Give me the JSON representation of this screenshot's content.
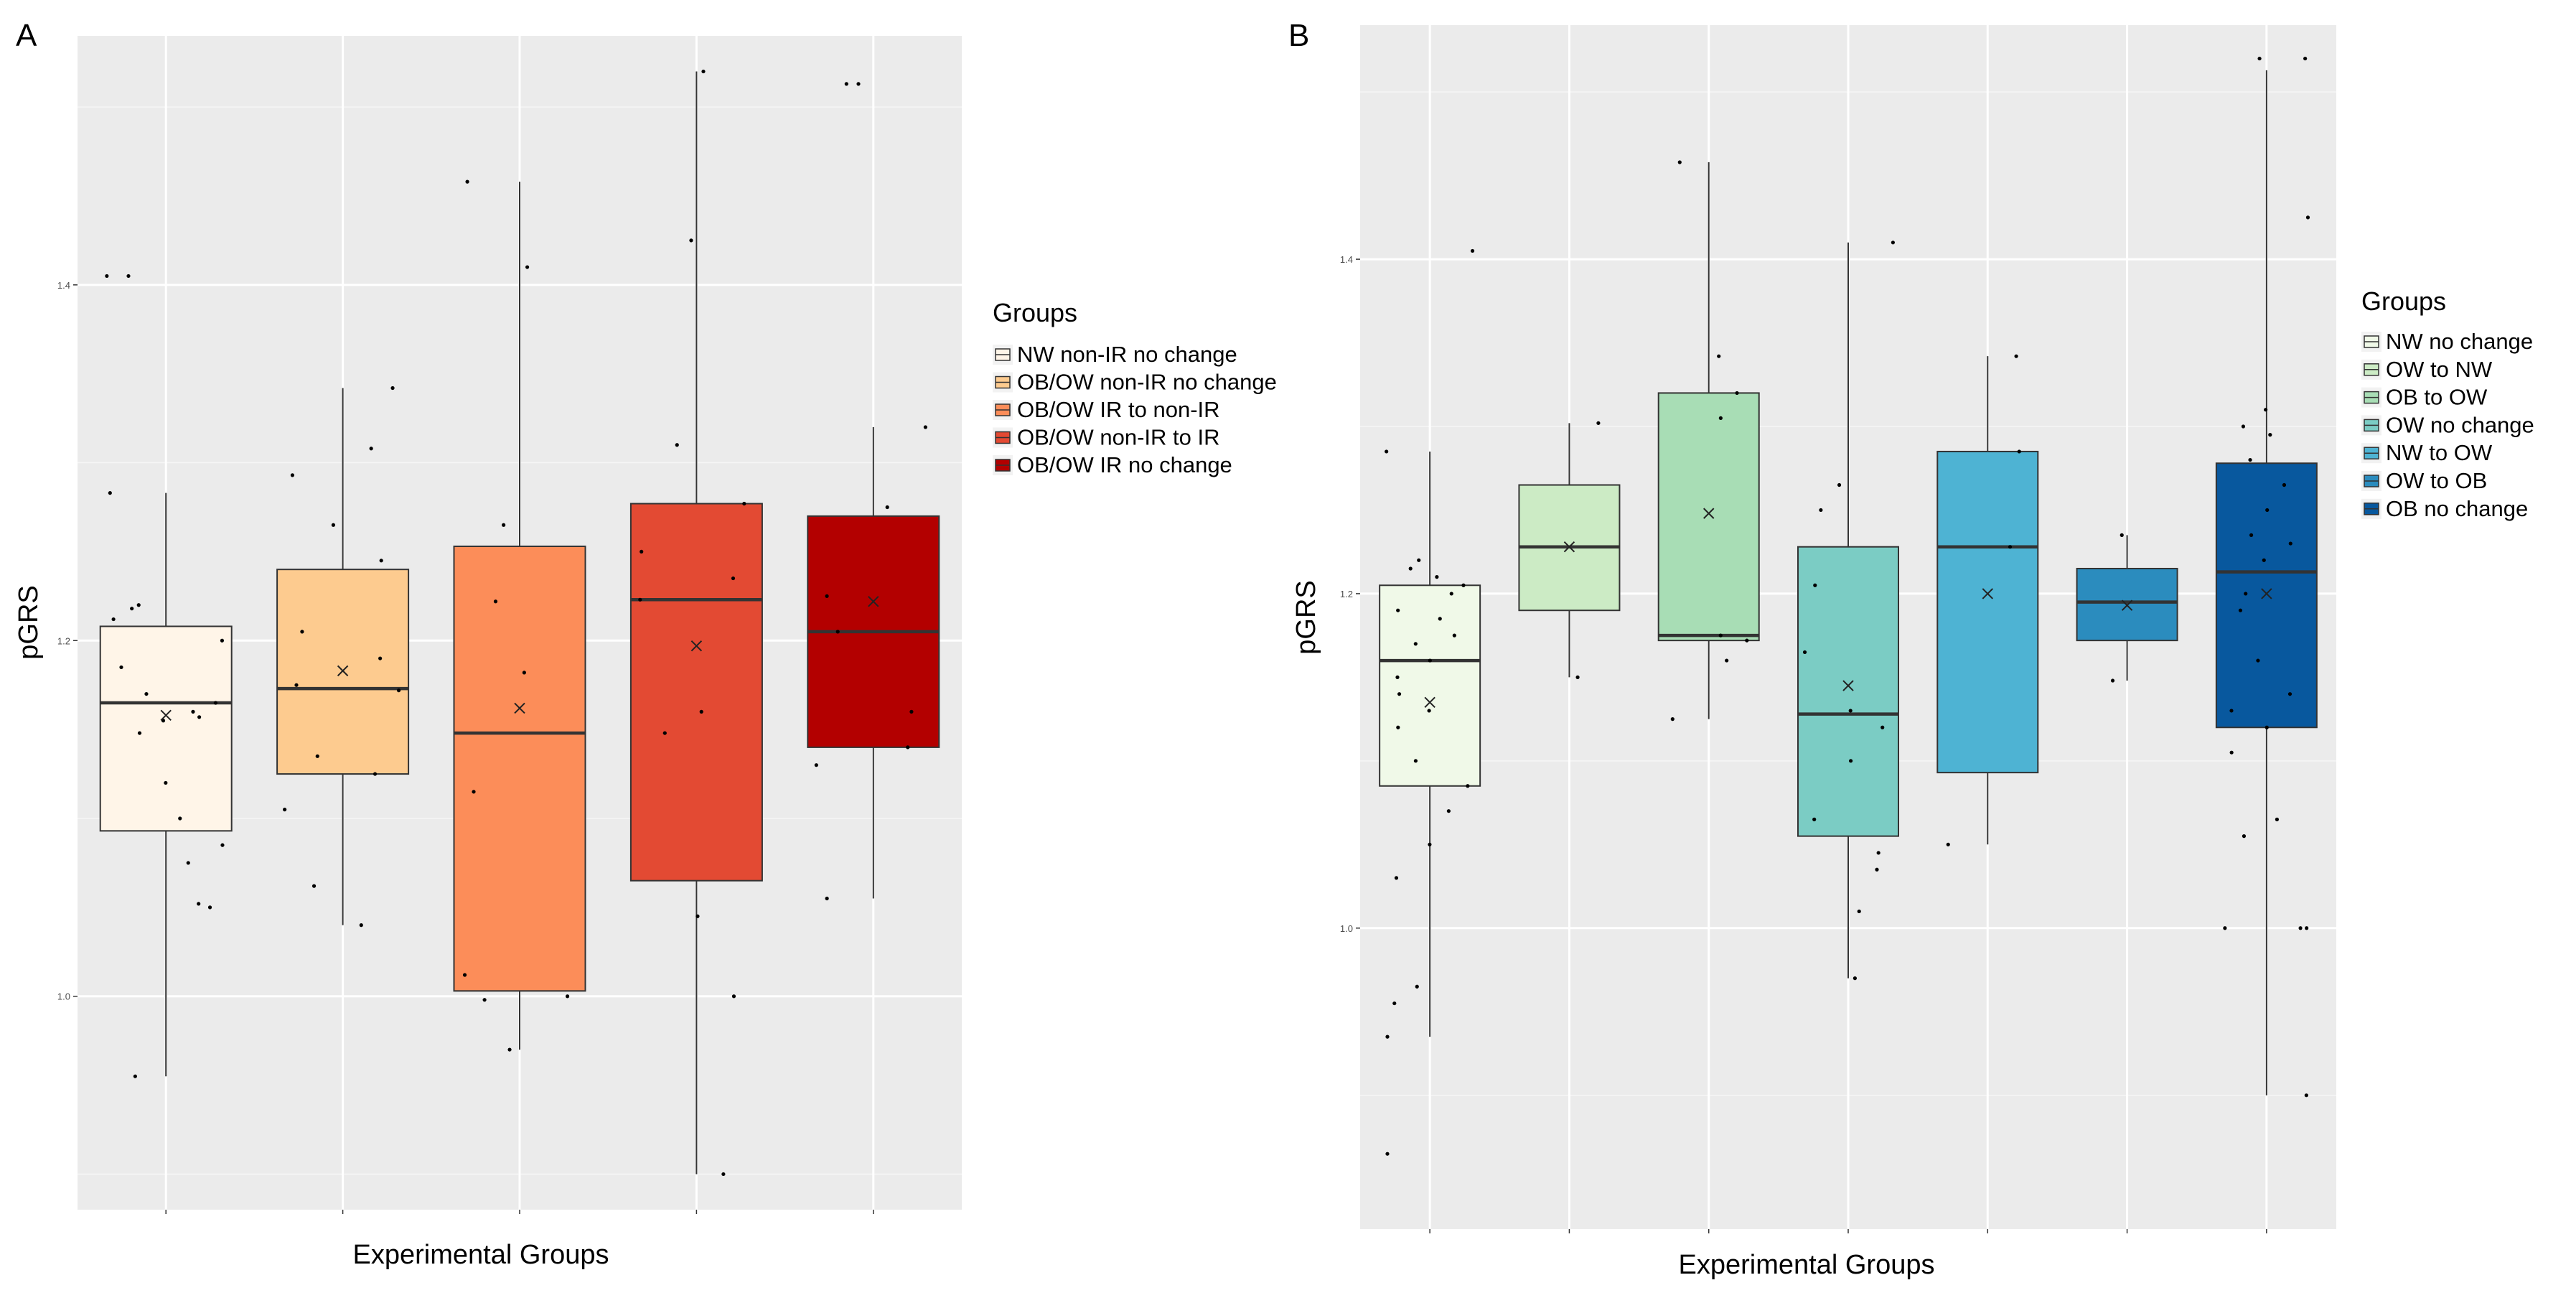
{
  "chart_data": [
    {
      "panel": "A",
      "type": "box",
      "xlabel": "Experimental Groups",
      "ylabel": "pGRS",
      "ylim": [
        0.88,
        1.54
      ],
      "yticks": [
        1.0,
        1.2,
        1.4
      ],
      "ytick_labels": [
        "1.0",
        "1.2",
        "1.4"
      ],
      "grid": true,
      "legend": {
        "title": "Groups",
        "placement": "right",
        "entries": [
          "NW non-IR  no change",
          "OB/OW non-IR no change",
          "OB/OW IR to non-IR",
          "OB/OW non-IR to IR",
          "OB/OW IR no change"
        ]
      },
      "series": [
        {
          "name": "NW non-IR  no change",
          "color": "#FFF5E8",
          "whisker_low": 0.955,
          "q1": 1.093,
          "median": 1.165,
          "q3": 1.208,
          "whisker_high": 1.283,
          "mean": 1.158,
          "points": [
            1.405,
            1.405,
            1.283,
            1.22,
            1.218,
            1.212,
            1.2,
            1.185,
            1.17,
            1.165,
            1.16,
            1.157,
            1.155,
            1.148,
            1.12,
            1.1,
            1.085,
            1.075,
            1.052,
            1.05,
            0.955
          ]
        },
        {
          "name": "OB/OW non-IR no change",
          "color": "#FDCB8F",
          "whisker_low": 1.04,
          "q1": 1.125,
          "median": 1.173,
          "q3": 1.24,
          "whisker_high": 1.342,
          "mean": 1.183,
          "points": [
            1.342,
            1.308,
            1.293,
            1.265,
            1.245,
            1.205,
            1.19,
            1.175,
            1.172,
            1.135,
            1.125,
            1.105,
            1.062,
            1.04
          ]
        },
        {
          "name": "OB/OW IR to non-IR",
          "color": "#FC8D59",
          "whisker_low": 0.97,
          "q1": 1.003,
          "median": 1.148,
          "q3": 1.253,
          "whisker_high": 1.458,
          "mean": 1.162,
          "points": [
            1.458,
            1.41,
            1.265,
            1.222,
            1.182,
            1.115,
            1.012,
            1.0,
            0.998,
            0.97
          ]
        },
        {
          "name": "OB/OW non-IR to IR",
          "color": "#E34A33",
          "whisker_low": 0.9,
          "q1": 1.065,
          "median": 1.223,
          "q3": 1.277,
          "whisker_high": 1.52,
          "mean": 1.197,
          "points": [
            1.52,
            1.425,
            1.31,
            1.277,
            1.25,
            1.235,
            1.223,
            1.16,
            1.148,
            1.045,
            1.0,
            0.9
          ]
        },
        {
          "name": "OB/OW IR no change",
          "color": "#B30000",
          "whisker_low": 1.055,
          "q1": 1.14,
          "median": 1.205,
          "q3": 1.27,
          "whisker_high": 1.32,
          "mean": 1.222,
          "points": [
            1.513,
            1.513,
            1.32,
            1.275,
            1.225,
            1.205,
            1.16,
            1.14,
            1.13,
            1.055
          ]
        }
      ]
    },
    {
      "panel": "B",
      "type": "box",
      "xlabel": "Experimental Groups",
      "ylabel": "pGRS",
      "ylim": [
        0.82,
        1.54
      ],
      "yticks": [
        1.0,
        1.2,
        1.4
      ],
      "ytick_labels": [
        "1.0",
        "1.2",
        "1.4"
      ],
      "grid": true,
      "legend": {
        "title": "Groups",
        "placement": "right",
        "entries": [
          "NW no change",
          "OW to NW",
          "OB to OW",
          "OW no change",
          "NW to OW",
          "OW to OB",
          "OB no change"
        ]
      },
      "series": [
        {
          "name": "NW no change",
          "color": "#F0F9E8",
          "whisker_low": 0.935,
          "q1": 1.085,
          "median": 1.16,
          "q3": 1.205,
          "whisker_high": 1.285,
          "mean": 1.135,
          "points": [
            1.405,
            1.285,
            1.22,
            1.215,
            1.21,
            1.205,
            1.2,
            1.19,
            1.185,
            1.175,
            1.17,
            1.16,
            1.15,
            1.14,
            1.13,
            1.12,
            1.1,
            1.085,
            1.07,
            1.05,
            1.03,
            0.965,
            0.955,
            0.935,
            0.865
          ]
        },
        {
          "name": "OW to NW",
          "color": "#CCEBC5",
          "whisker_low": 1.15,
          "q1": 1.19,
          "median": 1.228,
          "q3": 1.265,
          "whisker_high": 1.302,
          "mean": 1.228,
          "points": [
            1.302,
            1.15
          ]
        },
        {
          "name": "OB to OW",
          "color": "#A8DDB5",
          "whisker_low": 1.125,
          "q1": 1.172,
          "median": 1.175,
          "q3": 1.32,
          "whisker_high": 1.458,
          "mean": 1.248,
          "points": [
            1.458,
            1.342,
            1.32,
            1.305,
            1.175,
            1.172,
            1.16,
            1.125
          ]
        },
        {
          "name": "OW no change",
          "color": "#7BCCC4",
          "whisker_low": 0.97,
          "q1": 1.055,
          "median": 1.128,
          "q3": 1.228,
          "whisker_high": 1.41,
          "mean": 1.145,
          "points": [
            1.41,
            1.265,
            1.25,
            1.205,
            1.165,
            1.13,
            1.12,
            1.1,
            1.065,
            1.045,
            1.035,
            1.01,
            0.97
          ]
        },
        {
          "name": "NW to OW",
          "color": "#4EB3D3",
          "whisker_low": 1.05,
          "q1": 1.093,
          "median": 1.228,
          "q3": 1.285,
          "whisker_high": 1.342,
          "mean": 1.2,
          "points": [
            1.342,
            1.285,
            1.228,
            1.05
          ]
        },
        {
          "name": "OW to OB",
          "color": "#2B8CBE",
          "whisker_low": 1.148,
          "q1": 1.172,
          "median": 1.195,
          "q3": 1.215,
          "whisker_high": 1.235,
          "mean": 1.193,
          "points": [
            1.235,
            1.148
          ]
        },
        {
          "name": "OB no change",
          "color": "#08589E",
          "whisker_low": 0.9,
          "q1": 1.12,
          "median": 1.213,
          "q3": 1.278,
          "whisker_high": 1.513,
          "mean": 1.2,
          "points": [
            1.52,
            1.52,
            1.425,
            1.31,
            1.3,
            1.295,
            1.28,
            1.265,
            1.25,
            1.235,
            1.23,
            1.22,
            1.2,
            1.19,
            1.16,
            1.14,
            1.13,
            1.12,
            1.105,
            1.065,
            1.055,
            1.0,
            1.0,
            1.0,
            0.9
          ]
        }
      ]
    }
  ]
}
